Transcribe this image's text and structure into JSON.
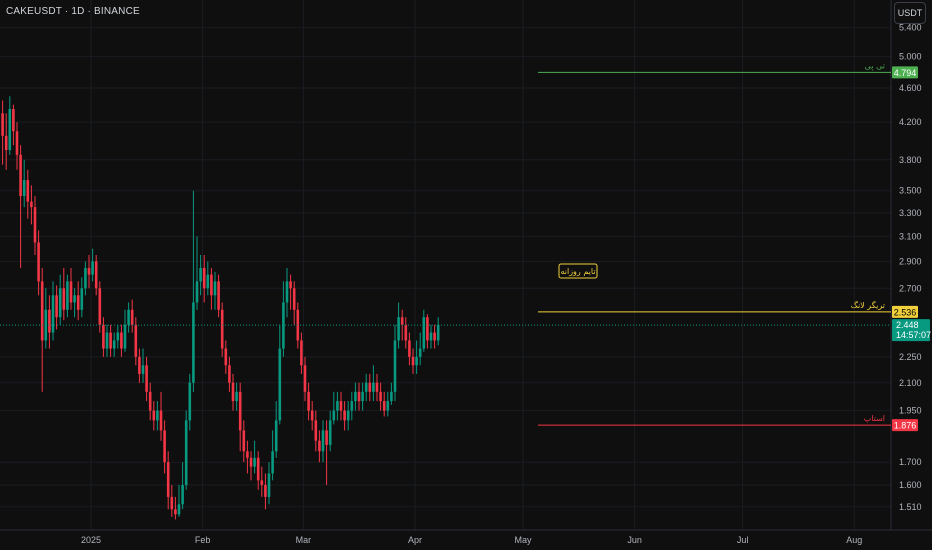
{
  "header": {
    "symbol": "CAKEUSDT · 1D · BINANCE",
    "currency_button": "USDT"
  },
  "chart_data": {
    "type": "candlestick",
    "x_ticks": [
      "2025",
      "Feb",
      "Mar",
      "Apr",
      "May",
      "Jun",
      "Jul",
      "Aug"
    ],
    "y_ticks": [
      "5.400",
      "5.000",
      "4.600",
      "4.200",
      "3.800",
      "3.500",
      "3.300",
      "3.100",
      "2.900",
      "2.700",
      "2.250",
      "2.100",
      "1.950",
      "1.700",
      "1.600",
      "1.510"
    ],
    "y_scale": "log",
    "ylim": [
      1.45,
      5.6
    ],
    "levels": [
      {
        "price": 4.794,
        "label": "تی پی",
        "tag": "4.794",
        "color": "#4caf50"
      },
      {
        "price": 2.536,
        "label": "تریگر لانگ",
        "tag": "2.536",
        "color": "#f2d03b"
      },
      {
        "price": 1.876,
        "label": "استاپ",
        "tag": "1.876",
        "color": "#f23645"
      }
    ],
    "current_price": {
      "value": 2.448,
      "tag": "2.448",
      "countdown": "14:57:07",
      "color": "#089981"
    },
    "annotation": {
      "text": "تایم روزانه"
    },
    "candles": [
      [
        4.3,
        4.05,
        4.45,
        3.75
      ],
      [
        4.05,
        3.9,
        4.3,
        3.7
      ],
      [
        3.9,
        4.35,
        4.5,
        3.85
      ],
      [
        4.35,
        4.1,
        4.4,
        3.95
      ],
      [
        4.1,
        3.85,
        4.2,
        3.7
      ],
      [
        3.85,
        3.45,
        3.95,
        2.85
      ],
      [
        3.45,
        3.6,
        3.8,
        3.35
      ],
      [
        3.6,
        3.4,
        3.7,
        3.25
      ],
      [
        3.4,
        3.35,
        3.55,
        3.2
      ],
      [
        3.35,
        3.05,
        3.45,
        2.95
      ],
      [
        3.05,
        2.75,
        3.15,
        2.65
      ],
      [
        2.75,
        2.35,
        2.85,
        2.05
      ],
      [
        2.35,
        2.55,
        2.7,
        2.3
      ],
      [
        2.55,
        2.4,
        2.65,
        2.3
      ],
      [
        2.4,
        2.65,
        2.75,
        2.35
      ],
      [
        2.65,
        2.5,
        2.72,
        2.42
      ],
      [
        2.5,
        2.7,
        2.8,
        2.45
      ],
      [
        2.7,
        2.55,
        2.85,
        2.48
      ],
      [
        2.55,
        2.75,
        2.8,
        2.5
      ],
      [
        2.75,
        2.6,
        2.85,
        2.55
      ],
      [
        2.6,
        2.65,
        2.7,
        2.5
      ],
      [
        2.65,
        2.55,
        2.75,
        2.48
      ],
      [
        2.55,
        2.7,
        2.78,
        2.5
      ],
      [
        2.7,
        2.85,
        2.9,
        2.65
      ],
      [
        2.85,
        2.8,
        2.95,
        2.7
      ],
      [
        2.8,
        2.9,
        3.0,
        2.75
      ],
      [
        2.9,
        2.7,
        2.95,
        2.65
      ],
      [
        2.7,
        2.45,
        2.75,
        2.4
      ],
      [
        2.45,
        2.3,
        2.5,
        2.25
      ],
      [
        2.3,
        2.4,
        2.45,
        2.25
      ],
      [
        2.4,
        2.3,
        2.45,
        2.25
      ],
      [
        2.3,
        2.35,
        2.4,
        2.25
      ],
      [
        2.35,
        2.4,
        2.45,
        2.3
      ],
      [
        2.4,
        2.3,
        2.45,
        2.25
      ],
      [
        2.3,
        2.45,
        2.55,
        2.28
      ],
      [
        2.45,
        2.55,
        2.6,
        2.4
      ],
      [
        2.55,
        2.45,
        2.62,
        2.4
      ],
      [
        2.45,
        2.25,
        2.5,
        2.2
      ],
      [
        2.25,
        2.15,
        2.3,
        2.1
      ],
      [
        2.15,
        2.2,
        2.3,
        2.1
      ],
      [
        2.2,
        2.05,
        2.25,
        2.0
      ],
      [
        2.05,
        1.95,
        2.1,
        1.9
      ],
      [
        1.95,
        1.9,
        2.0,
        1.85
      ],
      [
        1.9,
        1.95,
        2.0,
        1.85
      ],
      [
        1.95,
        1.85,
        2.05,
        1.8
      ],
      [
        1.85,
        1.7,
        1.9,
        1.65
      ],
      [
        1.7,
        1.55,
        1.75,
        1.5
      ],
      [
        1.55,
        1.5,
        1.6,
        1.47
      ],
      [
        1.5,
        1.48,
        1.55,
        1.46
      ],
      [
        1.48,
        1.52,
        1.6,
        1.47
      ],
      [
        1.52,
        1.6,
        1.7,
        1.5
      ],
      [
        1.6,
        1.9,
        1.95,
        1.58
      ],
      [
        1.9,
        2.1,
        2.15,
        1.85
      ],
      [
        2.1,
        2.6,
        3.5,
        2.05
      ],
      [
        2.6,
        2.75,
        3.1,
        2.55
      ],
      [
        2.75,
        2.85,
        2.95,
        2.65
      ],
      [
        2.85,
        2.7,
        2.95,
        2.6
      ],
      [
        2.7,
        2.8,
        2.9,
        2.65
      ],
      [
        2.8,
        2.65,
        2.85,
        2.55
      ],
      [
        2.65,
        2.75,
        2.82,
        2.55
      ],
      [
        2.75,
        2.55,
        2.8,
        2.5
      ],
      [
        2.55,
        2.3,
        2.6,
        2.25
      ],
      [
        2.3,
        2.2,
        2.35,
        2.15
      ],
      [
        2.2,
        2.1,
        2.25,
        2.05
      ],
      [
        2.1,
        2.0,
        2.15,
        1.95
      ],
      [
        2.0,
        2.05,
        2.1,
        1.95
      ],
      [
        2.05,
        1.85,
        2.1,
        1.75
      ],
      [
        1.85,
        1.75,
        1.9,
        1.7
      ],
      [
        1.75,
        1.72,
        1.8,
        1.65
      ],
      [
        1.72,
        1.68,
        1.75,
        1.62
      ],
      [
        1.68,
        1.72,
        1.8,
        1.65
      ],
      [
        1.72,
        1.62,
        1.75,
        1.58
      ],
      [
        1.62,
        1.6,
        1.68,
        1.55
      ],
      [
        1.6,
        1.55,
        1.65,
        1.5
      ],
      [
        1.55,
        1.65,
        1.7,
        1.52
      ],
      [
        1.65,
        1.75,
        1.85,
        1.62
      ],
      [
        1.75,
        1.9,
        2.0,
        1.72
      ],
      [
        1.9,
        2.3,
        2.45,
        1.88
      ],
      [
        2.3,
        2.6,
        2.75,
        2.25
      ],
      [
        2.6,
        2.75,
        2.85,
        2.5
      ],
      [
        2.75,
        2.7,
        2.8,
        2.55
      ],
      [
        2.7,
        2.55,
        2.75,
        2.45
      ],
      [
        2.55,
        2.35,
        2.6,
        2.3
      ],
      [
        2.35,
        2.2,
        2.4,
        2.15
      ],
      [
        2.2,
        2.05,
        2.25,
        2.0
      ],
      [
        2.05,
        1.95,
        2.1,
        1.9
      ],
      [
        1.95,
        1.9,
        2.0,
        1.85
      ],
      [
        1.9,
        1.8,
        1.95,
        1.75
      ],
      [
        1.8,
        1.75,
        1.85,
        1.7
      ],
      [
        1.75,
        1.85,
        1.9,
        1.7
      ],
      [
        1.85,
        1.78,
        1.9,
        1.6
      ],
      [
        1.78,
        1.9,
        1.95,
        1.75
      ],
      [
        1.9,
        1.95,
        2.05,
        1.88
      ],
      [
        1.95,
        2.0,
        2.05,
        1.9
      ],
      [
        2.0,
        1.95,
        2.05,
        1.9
      ],
      [
        1.95,
        1.9,
        2.0,
        1.85
      ],
      [
        1.9,
        1.95,
        2.0,
        1.85
      ],
      [
        1.95,
        2.0,
        2.05,
        1.9
      ],
      [
        2.0,
        2.05,
        2.1,
        1.95
      ],
      [
        2.05,
        2.0,
        2.1,
        1.95
      ],
      [
        2.0,
        2.05,
        2.1,
        1.95
      ],
      [
        2.05,
        2.1,
        2.15,
        2.0
      ],
      [
        2.1,
        2.05,
        2.15,
        2.0
      ],
      [
        2.05,
        2.1,
        2.2,
        2.0
      ],
      [
        2.1,
        2.05,
        2.15,
        2.0
      ],
      [
        2.05,
        2.0,
        2.1,
        1.95
      ],
      [
        2.0,
        1.95,
        2.05,
        1.92
      ],
      [
        1.95,
        2.0,
        2.05,
        1.92
      ],
      [
        2.0,
        2.05,
        2.1,
        1.98
      ],
      [
        2.05,
        2.35,
        2.45,
        2.0
      ],
      [
        2.35,
        2.5,
        2.6,
        2.3
      ],
      [
        2.5,
        2.45,
        2.55,
        2.35
      ],
      [
        2.45,
        2.35,
        2.5,
        2.3
      ],
      [
        2.35,
        2.25,
        2.4,
        2.2
      ],
      [
        2.25,
        2.2,
        2.3,
        2.15
      ],
      [
        2.2,
        2.25,
        2.35,
        2.15
      ],
      [
        2.25,
        2.3,
        2.4,
        2.2
      ],
      [
        2.3,
        2.5,
        2.55,
        2.28
      ],
      [
        2.5,
        2.35,
        2.52,
        2.3
      ],
      [
        2.35,
        2.4,
        2.45,
        2.3
      ],
      [
        2.4,
        2.35,
        2.45,
        2.3
      ],
      [
        2.35,
        2.45,
        2.5,
        2.32
      ]
    ]
  }
}
